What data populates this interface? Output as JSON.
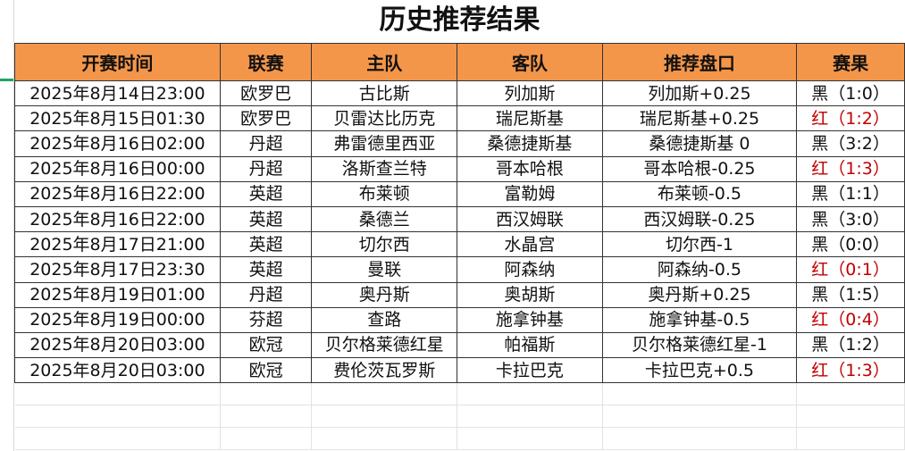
{
  "title": "历史推荐结果",
  "headers": [
    "开赛时间",
    "联赛",
    "主队",
    "客队",
    "推荐盘口",
    "赛果"
  ],
  "colors": {
    "header_bg": "#f4964a",
    "win_red": "#c00000",
    "loss_black": "#111111"
  },
  "rows": [
    [
      "2025年8月14日23:00",
      "欧罗巴",
      "古比斯",
      "列加斯",
      "列加斯+0.25",
      "黑（1:0）"
    ],
    [
      "2025年8月15日01:30",
      "欧罗巴",
      "贝雷达比历克",
      "瑞尼斯基",
      "瑞尼斯基+0.25",
      "红（1:2）"
    ],
    [
      "2025年8月16日02:00",
      "丹超",
      "弗雷德里西亚",
      "桑德捷斯基",
      "桑德捷斯基 0",
      "黑（3:2）"
    ],
    [
      "2025年8月16日00:00",
      "丹超",
      "洛斯查兰特",
      "哥本哈根",
      "哥本哈根-0.25",
      "红（1:3）"
    ],
    [
      "2025年8月16日22:00",
      "英超",
      "布莱顿",
      "富勒姆",
      "布莱顿-0.5",
      "黑（1:1）"
    ],
    [
      "2025年8月16日22:00",
      "英超",
      "桑德兰",
      "西汉姆联",
      "西汉姆联-0.25",
      "黑（3:0）"
    ],
    [
      "2025年8月17日21:00",
      "英超",
      "切尔西",
      "水晶宫",
      "切尔西-1",
      "黑（0:0）"
    ],
    [
      "2025年8月17日23:30",
      "英超",
      "曼联",
      "阿森纳",
      "阿森纳-0.5",
      "红（0:1）"
    ],
    [
      "2025年8月19日01:00",
      "丹超",
      "奥丹斯",
      "奥胡斯",
      "奥丹斯+0.25",
      "黑（1:5）"
    ],
    [
      "2025年8月19日00:00",
      "芬超",
      "查路",
      "施拿钟基",
      "施拿钟基-0.5",
      "红（0:4）"
    ],
    [
      "2025年8月20日03:00",
      "欧冠",
      "贝尔格莱德红星",
      "帕福斯",
      "贝尔格莱德红星-1",
      "黑（1:2）"
    ],
    [
      "2025年8月20日03:00",
      "欧冠",
      "费伦茨瓦罗斯",
      "卡拉巴克",
      "卡拉巴克+0.5",
      "红（1:3）"
    ]
  ]
}
